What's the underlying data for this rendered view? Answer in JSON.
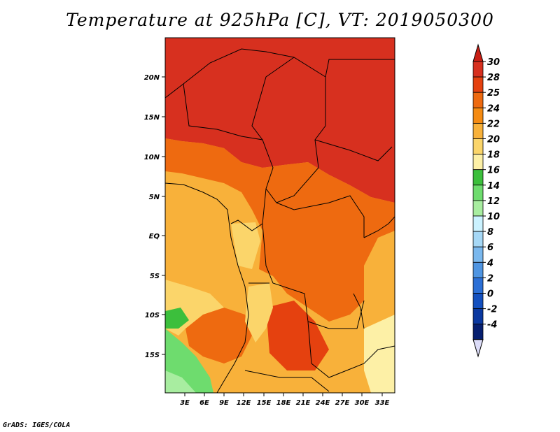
{
  "title": "Temperature at 925hPa [C], VT: 2019050300",
  "credit": "GrADS: IGES/COLA",
  "map": {
    "lat_labels": [
      "20N",
      "15N",
      "10N",
      "5N",
      "EQ",
      "5S",
      "10S",
      "15S"
    ],
    "lon_labels": [
      "3E",
      "6E",
      "9E",
      "12E",
      "15E",
      "18E",
      "21E",
      "24E",
      "27E",
      "30E",
      "33E"
    ]
  },
  "colorbar": {
    "labels": [
      "30",
      "28",
      "25",
      "24",
      "22",
      "20",
      "18",
      "16",
      "14",
      "12",
      "10",
      "8",
      "6",
      "4",
      "2",
      "0",
      "-2",
      "-4"
    ],
    "colors": [
      "#d7301f",
      "#e5410f",
      "#ee6a10",
      "#f58b12",
      "#f8b13a",
      "#fbd56a",
      "#fdf0a6",
      "#3cbf3c",
      "#6edc6e",
      "#a8eda0",
      "#cbf2ff",
      "#a6d8f6",
      "#7ab8ee",
      "#4f95e2",
      "#2b6fd6",
      "#1450bf",
      "#0a38a0",
      "#061f70"
    ],
    "top_arrow_color": "#c81e14",
    "bottom_arrow_color": "#dcdcf8"
  }
}
